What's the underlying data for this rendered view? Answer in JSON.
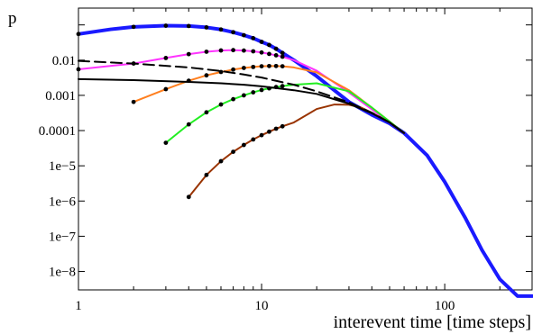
{
  "chart_data": {
    "type": "line",
    "title": "",
    "xlabel": "interevent time [time steps]",
    "ylabel": "p",
    "xscale": "log",
    "yscale": "log",
    "xlim": [
      1,
      300
    ],
    "ylim": [
      3e-09,
      0.3
    ],
    "grid": false,
    "legend": "none",
    "x_ticks": [
      {
        "value": 1,
        "label": "1"
      },
      {
        "value": 10,
        "label": "10"
      },
      {
        "value": 100,
        "label": "100"
      }
    ],
    "y_ticks": [
      {
        "value": 0.01,
        "label": "0.01"
      },
      {
        "value": 0.001,
        "label": "0.001"
      },
      {
        "value": 0.0001,
        "label": "0.0001"
      },
      {
        "value": 1e-05,
        "label": "1e−5"
      },
      {
        "value": 1e-06,
        "label": "1e−6"
      },
      {
        "value": 1e-07,
        "label": "1e−7"
      },
      {
        "value": 1e-08,
        "label": "1e−8"
      }
    ],
    "series": [
      {
        "color": "#1a1aff",
        "dash": "solid",
        "width": 4,
        "x": [
          1,
          1.5,
          2,
          3,
          4,
          5,
          6,
          7,
          8,
          9,
          10,
          11,
          12,
          13,
          15,
          20,
          30,
          40,
          50,
          60,
          80,
          100,
          130,
          160,
          200,
          250,
          300
        ],
        "y": [
          0.055,
          0.075,
          0.088,
          0.095,
          0.093,
          0.085,
          0.074,
          0.062,
          0.051,
          0.042,
          0.033,
          0.027,
          0.021,
          0.016,
          0.01,
          0.0035,
          0.00065,
          0.00028,
          0.00016,
          8.5e-05,
          2e-05,
          3.5e-06,
          3.2e-07,
          4e-08,
          6e-09,
          2e-09,
          2e-09
        ]
      },
      {
        "color": "#ff33ff",
        "dash": "solid",
        "width": 2,
        "x": [
          1,
          2,
          3,
          4,
          5,
          6,
          7,
          8,
          9,
          10,
          11,
          12,
          13,
          15,
          20,
          30,
          40,
          50,
          60
        ],
        "y": [
          0.0055,
          0.008,
          0.0115,
          0.0148,
          0.0173,
          0.0188,
          0.0192,
          0.0187,
          0.0178,
          0.0165,
          0.015,
          0.0137,
          0.0125,
          0.01,
          0.005,
          0.0012,
          0.0004,
          0.00017,
          8.5e-05
        ]
      },
      {
        "color": "#ff7f1f",
        "dash": "solid",
        "width": 2,
        "x": [
          2,
          3,
          4,
          5,
          6,
          7,
          8,
          9,
          10,
          11,
          12,
          13,
          15,
          20,
          30,
          40,
          50,
          60
        ],
        "y": [
          0.00065,
          0.0015,
          0.0026,
          0.0037,
          0.0046,
          0.0054,
          0.006,
          0.0064,
          0.0067,
          0.0068,
          0.0068,
          0.0067,
          0.0062,
          0.0045,
          0.0014,
          0.00045,
          0.00018,
          8.5e-05
        ]
      },
      {
        "color": "#22ee22",
        "dash": "solid",
        "width": 2,
        "x": [
          3,
          4,
          5,
          6,
          7,
          8,
          9,
          10,
          11,
          12,
          13,
          15,
          20,
          30,
          40,
          50,
          60
        ],
        "y": [
          4.5e-05,
          0.00015,
          0.00033,
          0.00055,
          0.00078,
          0.001,
          0.00122,
          0.00142,
          0.00158,
          0.00172,
          0.00183,
          0.002,
          0.0022,
          0.0013,
          0.00045,
          0.00018,
          8.5e-05
        ]
      },
      {
        "color": "#993300",
        "dash": "solid",
        "width": 2,
        "x": [
          4,
          5,
          6,
          7,
          8,
          9,
          10,
          11,
          12,
          13,
          15,
          20,
          25,
          30,
          35,
          40,
          50,
          60
        ],
        "y": [
          1.3e-06,
          5.5e-06,
          1.35e-05,
          2.5e-05,
          3.9e-05,
          5.6e-05,
          7.4e-05,
          9.3e-05,
          0.000113,
          0.000132,
          0.00017,
          0.00041,
          0.00055,
          0.00054,
          0.00045,
          0.00032,
          0.00017,
          8.5e-05
        ]
      },
      {
        "color": "#000000",
        "dash": "dashed",
        "width": 2,
        "x": [
          1,
          2,
          4,
          6,
          8,
          10,
          15,
          20,
          30,
          40,
          50,
          60
        ],
        "y": [
          0.0095,
          0.008,
          0.0062,
          0.0049,
          0.0039,
          0.0032,
          0.002,
          0.0013,
          0.00063,
          0.00032,
          0.00017,
          8.5e-05
        ]
      },
      {
        "color": "#000000",
        "dash": "solid",
        "width": 2,
        "x": [
          1,
          2,
          4,
          6,
          8,
          10,
          15,
          20,
          30,
          40,
          50,
          60
        ],
        "y": [
          0.0029,
          0.0027,
          0.0024,
          0.0022,
          0.002,
          0.0018,
          0.0014,
          0.0011,
          0.00058,
          0.00031,
          0.00017,
          8.5e-05
        ]
      }
    ],
    "markers": [
      {
        "x": [
          1,
          2,
          3,
          4,
          5,
          6,
          7,
          8,
          9,
          10,
          11,
          12,
          13
        ],
        "y": [
          0.055,
          0.088,
          0.095,
          0.093,
          0.085,
          0.074,
          0.062,
          0.051,
          0.042,
          0.033,
          0.027,
          0.021,
          0.016
        ]
      },
      {
        "x": [
          1,
          2,
          3,
          4,
          5,
          6,
          7,
          8,
          9,
          10,
          11,
          12,
          13
        ],
        "y": [
          0.0055,
          0.008,
          0.0115,
          0.0148,
          0.0173,
          0.0188,
          0.0192,
          0.0187,
          0.0178,
          0.0165,
          0.015,
          0.0137,
          0.0125
        ]
      },
      {
        "x": [
          2,
          3,
          4,
          5,
          6,
          7,
          8,
          9,
          10,
          11,
          12,
          13
        ],
        "y": [
          0.00065,
          0.0015,
          0.0026,
          0.0037,
          0.0046,
          0.0054,
          0.006,
          0.0064,
          0.0067,
          0.0068,
          0.0068,
          0.0067
        ]
      },
      {
        "x": [
          3,
          4,
          5,
          6,
          7,
          8,
          9,
          10,
          11,
          12,
          13
        ],
        "y": [
          4.5e-05,
          0.00015,
          0.00033,
          0.00055,
          0.00078,
          0.001,
          0.00122,
          0.00142,
          0.00158,
          0.00172,
          0.00183
        ]
      },
      {
        "x": [
          4,
          5,
          6,
          7,
          8,
          9,
          10,
          11,
          12,
          13
        ],
        "y": [
          1.3e-06,
          5.5e-06,
          1.35e-05,
          2.5e-05,
          3.9e-05,
          5.6e-05,
          7.4e-05,
          9.3e-05,
          0.000113,
          0.000132
        ]
      }
    ]
  }
}
